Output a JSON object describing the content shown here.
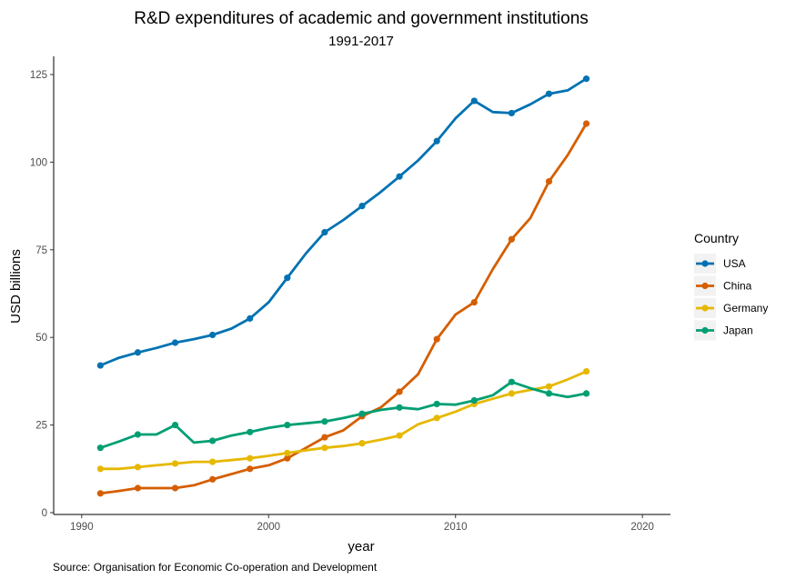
{
  "chart_data": {
    "type": "line",
    "title": "R&D expenditures of academic and government institutions",
    "subtitle": "1991-2017",
    "xlabel": "year",
    "ylabel": "USD billions",
    "caption": "Source: Organisation for Economic Co-operation and Development",
    "xlim": [
      1988.5,
      2021.5
    ],
    "ylim": [
      0,
      125
    ],
    "xticks": [
      1990,
      2000,
      2010,
      2020
    ],
    "yticks": [
      0,
      25,
      50,
      75,
      100,
      125
    ],
    "legend_title": "Country",
    "legend_position": "right",
    "grid": false,
    "series": [
      {
        "name": "USA",
        "color": "#0072B2",
        "x": [
          1991,
          1992,
          1993,
          1994,
          1995,
          1996,
          1997,
          1998,
          1999,
          2000,
          2001,
          2002,
          2003,
          2004,
          2005,
          2006,
          2007,
          2008,
          2009,
          2010,
          2011,
          2012,
          2013,
          2014,
          2015,
          2016,
          2017
        ],
        "y": [
          42.0,
          44.2,
          45.7,
          47.0,
          48.5,
          49.5,
          50.7,
          52.5,
          55.4,
          60.0,
          67.0,
          74.0,
          80.0,
          83.5,
          87.5,
          91.5,
          95.9,
          100.5,
          106.0,
          112.5,
          117.5,
          114.3,
          114.0,
          116.5,
          119.5,
          120.5,
          123.8
        ],
        "markers": [
          1991,
          1993,
          1995,
          1997,
          1999,
          2001,
          2003,
          2005,
          2007,
          2009,
          2011,
          2013,
          2015,
          2017
        ]
      },
      {
        "name": "China",
        "color": "#D55E00",
        "x": [
          1991,
          1992,
          1993,
          1994,
          1995,
          1996,
          1997,
          1998,
          1999,
          2000,
          2001,
          2002,
          2003,
          2004,
          2005,
          2006,
          2007,
          2008,
          2009,
          2010,
          2011,
          2012,
          2013,
          2014,
          2015,
          2016,
          2017
        ],
        "y": [
          5.5,
          6.2,
          7.0,
          7.0,
          7.0,
          7.8,
          9.5,
          11.0,
          12.5,
          13.5,
          15.5,
          18.5,
          21.5,
          23.5,
          27.5,
          30.0,
          34.5,
          39.5,
          49.5,
          56.5,
          60.0,
          69.5,
          78.0,
          84.0,
          94.5,
          102.0,
          111.0
        ],
        "markers": [
          1991,
          1993,
          1995,
          1997,
          1999,
          2001,
          2003,
          2005,
          2007,
          2009,
          2011,
          2013,
          2015,
          2017
        ]
      },
      {
        "name": "Germany",
        "color": "#E6B800",
        "x": [
          1991,
          1992,
          1993,
          1994,
          1995,
          1996,
          1997,
          1998,
          1999,
          2000,
          2001,
          2002,
          2003,
          2004,
          2005,
          2006,
          2007,
          2008,
          2009,
          2010,
          2011,
          2012,
          2013,
          2014,
          2015,
          2016,
          2017
        ],
        "y": [
          12.5,
          12.5,
          13.0,
          13.5,
          14.0,
          14.5,
          14.5,
          15.0,
          15.5,
          16.2,
          17.0,
          17.8,
          18.5,
          19.0,
          19.8,
          20.8,
          22.0,
          25.2,
          27.0,
          28.8,
          31.0,
          32.5,
          34.0,
          35.0,
          36.0,
          38.0,
          40.3
        ],
        "markers": [
          1991,
          1993,
          1995,
          1997,
          1999,
          2001,
          2003,
          2005,
          2007,
          2009,
          2011,
          2013,
          2015,
          2017
        ]
      },
      {
        "name": "Japan",
        "color": "#009E73",
        "x": [
          1991,
          1992,
          1993,
          1994,
          1995,
          1996,
          1997,
          1998,
          1999,
          2000,
          2001,
          2002,
          2003,
          2004,
          2005,
          2006,
          2007,
          2008,
          2009,
          2010,
          2011,
          2012,
          2013,
          2014,
          2015,
          2016,
          2017
        ],
        "y": [
          18.5,
          20.3,
          22.3,
          22.3,
          25.0,
          20.0,
          20.5,
          22.0,
          23.0,
          24.2,
          25.0,
          25.5,
          26.0,
          27.0,
          28.2,
          29.3,
          30.0,
          29.5,
          31.0,
          30.8,
          32.0,
          33.5,
          37.3,
          35.5,
          34.0,
          33.0,
          34.0
        ],
        "markers": [
          1991,
          1993,
          1995,
          1997,
          1999,
          2001,
          2003,
          2005,
          2007,
          2009,
          2011,
          2013,
          2015,
          2017
        ]
      }
    ]
  }
}
